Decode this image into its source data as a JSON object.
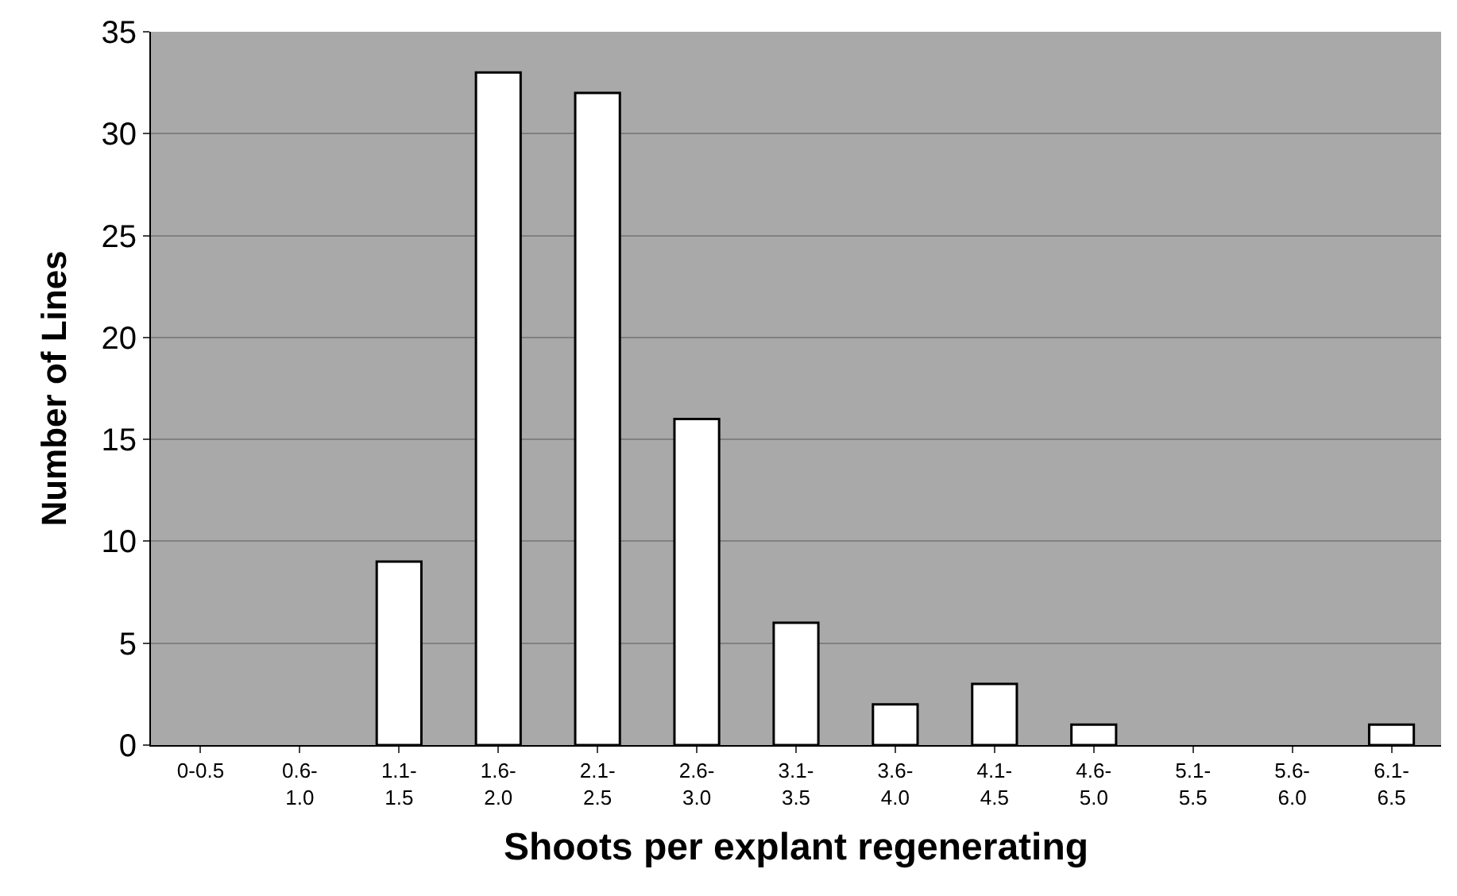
{
  "chart_data": {
    "type": "bar",
    "xlabel": "Shoots per explant regenerating",
    "ylabel": "Number of Lines",
    "categories": [
      "0-0.5",
      "0.6-\n1.0",
      "1.1-\n1.5",
      "1.6-\n2.0",
      "2.1-\n2.5",
      "2.6-\n3.0",
      "3.1-\n3.5",
      "3.6-\n4.0",
      "4.1-\n4.5",
      "4.6-\n5.0",
      "5.1-\n5.5",
      "5.6-\n6.0",
      "6.1-\n6.5"
    ],
    "values": [
      0,
      0,
      9,
      33,
      32,
      16,
      6,
      2,
      3,
      1,
      0,
      0,
      1
    ],
    "color": "#ffffff",
    "ylim": [
      0,
      35
    ],
    "yticks": [
      0,
      5,
      10,
      15,
      20,
      25,
      30,
      35
    ],
    "grid": "y"
  }
}
